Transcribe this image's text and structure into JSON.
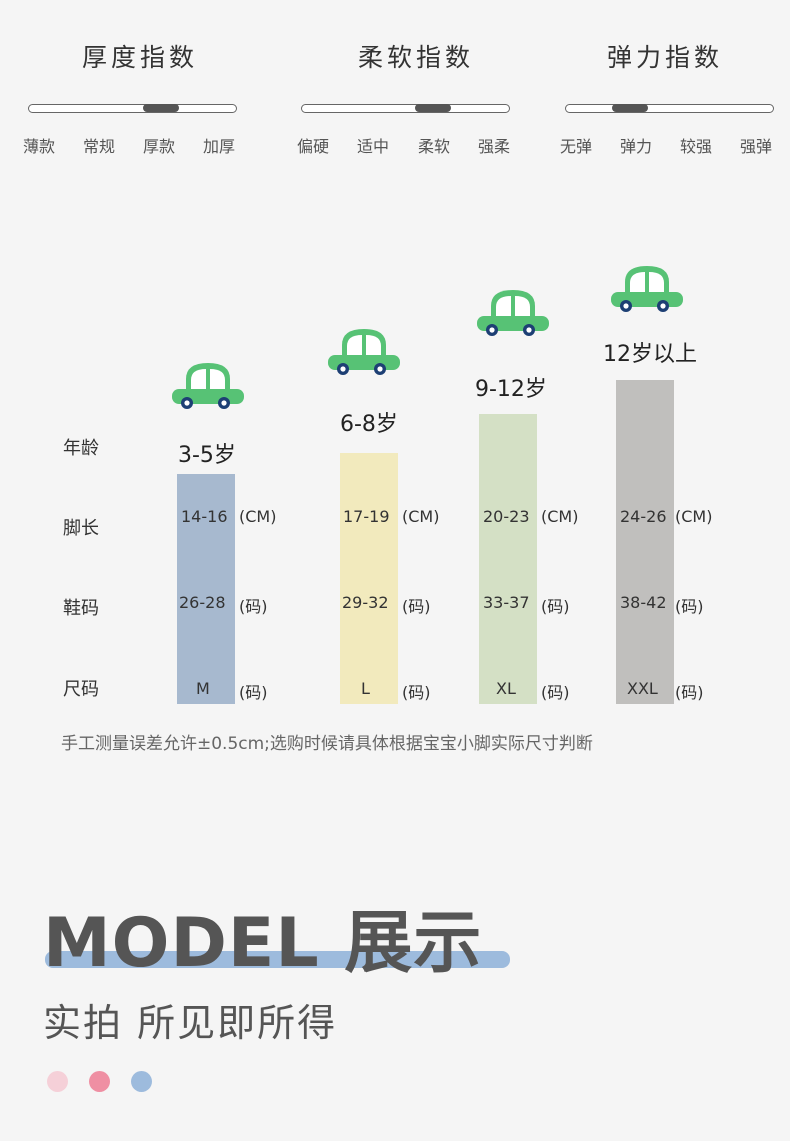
{
  "indices": [
    {
      "title": "厚度指数",
      "levels": [
        "薄款",
        "常规",
        "厚款",
        "加厚"
      ],
      "selected": "厚款"
    },
    {
      "title": "柔软指数",
      "levels": [
        "偏硬",
        "适中",
        "柔软",
        "强柔"
      ],
      "selected": "柔软"
    },
    {
      "title": "弹力指数",
      "levels": [
        "无弹",
        "弹力",
        "较强",
        "强弹"
      ],
      "selected": "弹力"
    }
  ],
  "size_chart": {
    "row_labels": {
      "age": "年龄",
      "foot": "脚长",
      "shoe": "鞋码",
      "size": "尺码"
    },
    "columns": [
      {
        "age": "3-5岁",
        "foot": "14-16",
        "foot_unit": "(CM)",
        "shoe": "26-28",
        "shoe_unit": "(码)",
        "size": "M",
        "size_unit": "(码)",
        "color": "#a7b9cf"
      },
      {
        "age": "6-8岁",
        "foot": "17-19",
        "foot_unit": "(CM)",
        "shoe": "29-32",
        "shoe_unit": "(码)",
        "size": "L",
        "size_unit": "(码)",
        "color": "#f2eabd"
      },
      {
        "age": "9-12岁",
        "foot": "20-23",
        "foot_unit": "(CM)",
        "shoe": "33-37",
        "shoe_unit": "(码)",
        "size": "XL",
        "size_unit": "(码)",
        "color": "#d4e0c5"
      },
      {
        "age": "12岁以上",
        "foot": "24-26",
        "foot_unit": "(CM)",
        "shoe": "38-42",
        "shoe_unit": "(码)",
        "size": "XXL",
        "size_unit": "(码)",
        "color": "#c0bfbd"
      }
    ],
    "note": "手工测量误差允许±0.5cm;选购时候请具体根据宝宝小脚实际尺寸判断"
  },
  "model": {
    "title": "MODEL 展示",
    "subtitle": "实拍 所见即所得",
    "dot_colors": [
      "#f5d0d8",
      "#ef8fa3",
      "#9dbbdd"
    ]
  },
  "colors": {
    "car": "#57c275",
    "car_wheel": "#1d3f74"
  },
  "icons": {
    "car": "car-icon"
  }
}
